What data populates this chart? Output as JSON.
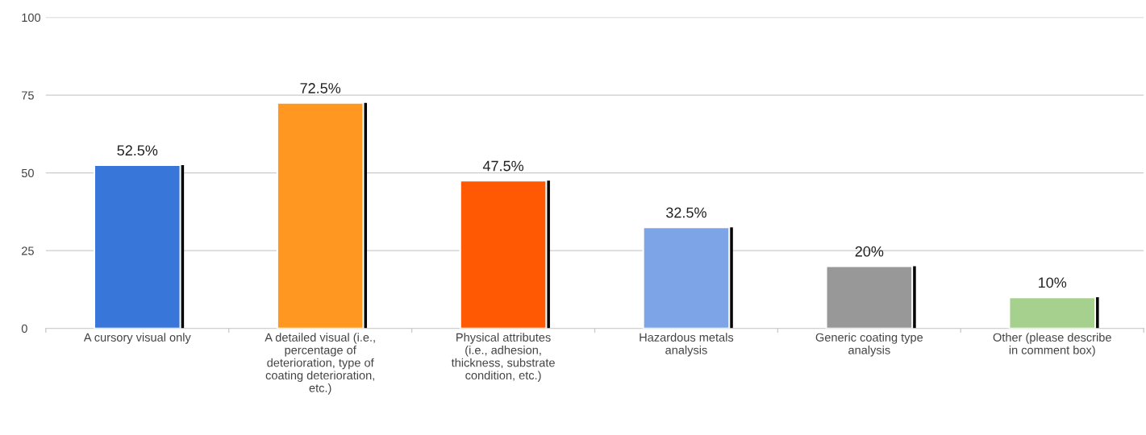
{
  "chart_data": {
    "type": "bar",
    "categories": [
      "A cursory visual only",
      "A detailed visual (i.e.,\npercentage of\ndeterioration, type of\ncoating deterioration,\netc.)",
      "Physical attributes\n(i.e., adhesion,\nthickness, substrate\ncondition, etc.)",
      "Hazardous metals\nanalysis",
      "Generic coating type\nanalysis",
      "Other (please describe\nin comment box)"
    ],
    "values": [
      52.5,
      72.5,
      47.5,
      32.5,
      20,
      10
    ],
    "colors": [
      "#3876d9",
      "#ff9720",
      "#ff5a03",
      "#7ea4e8",
      "#989898",
      "#a6d08e"
    ],
    "value_labels": [
      "52.5%",
      "72.5%",
      "47.5%",
      "32.5%",
      "20%",
      "10%"
    ],
    "ylim": [
      0,
      100
    ],
    "yticks": [
      0,
      25,
      50,
      75,
      100
    ],
    "grid": "y",
    "legend": false
  }
}
